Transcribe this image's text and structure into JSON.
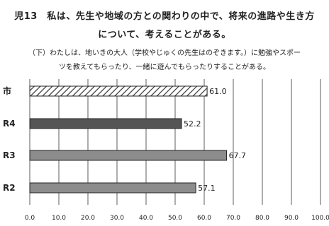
{
  "chart_data": {
    "type": "bar",
    "orientation": "horizontal",
    "title": "児13　私は、先生や地域の方との関わりの中で、将来の進路や生き方",
    "title_line2": "について、考えることがある。",
    "subtitle": "（下）わたしは、地いきの大人（学校やじゅくの先生はのぞきます。）に勉強やスポー",
    "subtitle_line2": "ツを教えてもらったり、一緒に遊んでもらったりすることがある。",
    "categories": [
      "市",
      "R4",
      "R3",
      "R2"
    ],
    "values": [
      61.0,
      52.2,
      67.7,
      57.1
    ],
    "value_labels": [
      "61.0",
      "52.2",
      "67.7",
      "57.1"
    ],
    "xlim": [
      0,
      100
    ],
    "ticks": [
      "0.0",
      "10.0",
      "20.0",
      "30.0",
      "40.0",
      "50.0",
      "60.0",
      "70.0",
      "80.0",
      "90.0",
      "100.0"
    ],
    "grid": true,
    "bar_styles": [
      "hatched",
      "dark",
      "mid",
      "mid"
    ],
    "colors": {
      "dark": "#555555",
      "mid": "#8c8c8c",
      "hatch_bg": "#ffffff",
      "hatch_line": "#333333",
      "grid": "#333333"
    }
  }
}
